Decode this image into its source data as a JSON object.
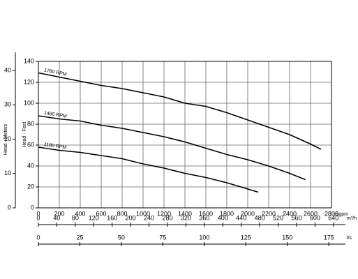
{
  "chart_data": {
    "type": "line",
    "x_label": "usgpm",
    "y_label": "Head - Feet",
    "y2_label": "Head - Meters",
    "xlim": [
      0,
      2800
    ],
    "xticks": [
      0,
      200,
      400,
      600,
      800,
      1000,
      1200,
      1400,
      1600,
      1800,
      2000,
      2200,
      2400,
      2600,
      2800
    ],
    "ylim": [
      0,
      140
    ],
    "yticks": [
      0,
      20,
      40,
      60,
      80,
      100,
      120,
      140
    ],
    "y2lim": [
      0,
      42.672
    ],
    "y2ticks": [
      0,
      10,
      20,
      30,
      40
    ],
    "grid": true,
    "series": [
      {
        "name": "1780 RPM",
        "color": "#000000",
        "x": [
          0,
          200,
          400,
          600,
          800,
          1000,
          1200,
          1400,
          1600,
          1800,
          2000,
          2200,
          2400,
          2600,
          2700
        ],
        "values": [
          129,
          125,
          121,
          117,
          114,
          110,
          106,
          100,
          97,
          91,
          84,
          77,
          70,
          61,
          56
        ]
      },
      {
        "name": "1480 RPM",
        "color": "#000000",
        "x": [
          0,
          200,
          400,
          600,
          800,
          1000,
          1200,
          1400,
          1600,
          1800,
          2000,
          2200,
          2400,
          2550
        ],
        "values": [
          88,
          85,
          83,
          79,
          76,
          72,
          68,
          63,
          57,
          51,
          46,
          40,
          33,
          27
        ]
      },
      {
        "name": "1180 RPM",
        "color": "#000000",
        "x": [
          0,
          200,
          400,
          600,
          800,
          1000,
          1200,
          1400,
          1600,
          1800,
          2000,
          2100
        ],
        "values": [
          58,
          55,
          53,
          50,
          47,
          42,
          38,
          33,
          29,
          24,
          18,
          15
        ]
      }
    ],
    "secondary_x_axes": [
      {
        "label": "m³/h",
        "xlim": [
          0,
          666
        ],
        "xticks": [
          0,
          40,
          80,
          120,
          160,
          200,
          240,
          280,
          320,
          360,
          400,
          440,
          480,
          520,
          560,
          600,
          640
        ]
      },
      {
        "label": "l/s",
        "xlim": [
          0,
          185
        ],
        "xticks": [
          0,
          25,
          50,
          75,
          100,
          125,
          150,
          175
        ]
      }
    ]
  }
}
